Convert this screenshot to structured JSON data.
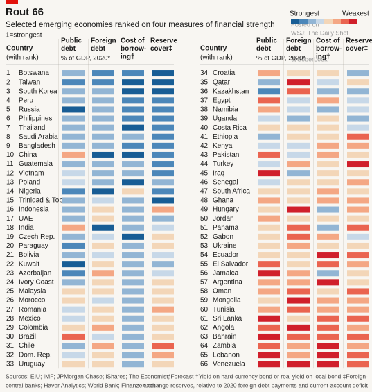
{
  "header": {
    "title": "Rout 66",
    "subtitle": "Selected emerging economies ranked on four measures of financial strength",
    "note": "1=strongest"
  },
  "legend": {
    "strong": "Strongest",
    "weak": "Weakest"
  },
  "watermark": [
    "WSJ: The Daily Shot",
    "Posted on",
    "@SoberLook"
  ],
  "scale_colors": [
    "#185d95",
    "#4c87b9",
    "#92b5d4",
    "#c7d8e8",
    "#f3d6b8",
    "#f4a784",
    "#ea6450",
    "#d01f2b"
  ],
  "columns": {
    "country": [
      "Country",
      "(with rank)"
    ],
    "public_debt": [
      "Public",
      "debt"
    ],
    "unit": "% of GDP, 2020*",
    "foreign_debt": [
      "Foreign",
      "debt"
    ],
    "cost": [
      "Cost of",
      "borrow-",
      "ing†"
    ],
    "reserve": [
      "Reserve",
      "cover‡"
    ]
  },
  "rows": [
    {
      "rank": 1,
      "country": "Botswana",
      "values": [
        3,
        2,
        2,
        1
      ]
    },
    {
      "rank": 2,
      "country": "Taiwan",
      "values": [
        2,
        2,
        1,
        1
      ]
    },
    {
      "rank": 3,
      "country": "South Korea",
      "values": [
        3,
        3,
        1,
        1
      ]
    },
    {
      "rank": 4,
      "country": "Peru",
      "values": [
        3,
        3,
        2,
        2
      ]
    },
    {
      "rank": 5,
      "country": "Russia",
      "values": [
        1,
        3,
        2,
        2
      ]
    },
    {
      "rank": 6,
      "country": "Philippines",
      "values": [
        3,
        3,
        2,
        2
      ]
    },
    {
      "rank": 7,
      "country": "Thailand",
      "values": [
        3,
        3,
        1,
        2
      ]
    },
    {
      "rank": 8,
      "country": "Saudi Arabia",
      "values": [
        3,
        3,
        3,
        2
      ]
    },
    {
      "rank": 9,
      "country": "Bangladesh",
      "values": [
        3,
        3,
        2,
        2
      ]
    },
    {
      "rank": 10,
      "country": "China",
      "values": [
        6,
        1,
        1,
        2
      ]
    },
    {
      "rank": 11,
      "country": "Guatemala",
      "values": [
        3,
        3,
        3,
        2
      ]
    },
    {
      "rank": 12,
      "country": "Vietnam",
      "values": [
        4,
        3,
        3,
        2
      ]
    },
    {
      "rank": 13,
      "country": "Poland",
      "values": [
        4,
        3,
        1,
        3
      ]
    },
    {
      "rank": 14,
      "country": "Nigeria",
      "values": [
        2,
        1,
        5,
        2
      ]
    },
    {
      "rank": 15,
      "country": "Trinidad & Tob.",
      "values": [
        3,
        4,
        3,
        1
      ]
    },
    {
      "rank": 16,
      "country": "Indonesia",
      "values": [
        3,
        5,
        3,
        6
      ]
    },
    {
      "rank": 17,
      "country": "UAE",
      "values": [
        3,
        5,
        3,
        3
      ]
    },
    {
      "rank": 18,
      "country": "India",
      "values": [
        6,
        1,
        3,
        4
      ]
    },
    {
      "rank": 19,
      "country": "Czech Rep.",
      "values": [
        3,
        4,
        1,
        5
      ]
    },
    {
      "rank": 20,
      "country": "Paraguay",
      "values": [
        2,
        5,
        3,
        5
      ]
    },
    {
      "rank": 21,
      "country": "Bolivia",
      "values": [
        3,
        4,
        3,
        4
      ]
    },
    {
      "rank": 22,
      "country": "Kuwait",
      "values": [
        1,
        5,
        3,
        3
      ]
    },
    {
      "rank": 23,
      "country": "Azerbaijan",
      "values": [
        2,
        6,
        3,
        4
      ]
    },
    {
      "rank": 24,
      "country": "Ivory Coast",
      "values": [
        3,
        5,
        3,
        5
      ]
    },
    {
      "rank": 25,
      "country": "Malaysia",
      "values": [
        5,
        5,
        3,
        5
      ]
    },
    {
      "rank": 26,
      "country": "Morocco",
      "values": [
        5,
        4,
        3,
        5
      ]
    },
    {
      "rank": 27,
      "country": "Romania",
      "values": [
        4,
        5,
        3,
        6
      ]
    },
    {
      "rank": 28,
      "country": "Mexico",
      "values": [
        4,
        5,
        3,
        5
      ]
    },
    {
      "rank": 29,
      "country": "Colombia",
      "values": [
        5,
        6,
        3,
        5
      ]
    },
    {
      "rank": 30,
      "country": "Brazil",
      "values": [
        7,
        4,
        3,
        5
      ]
    },
    {
      "rank": 31,
      "country": "Chile",
      "values": [
        3,
        6,
        3,
        7
      ]
    },
    {
      "rank": 32,
      "country": "Dom. Rep.",
      "values": [
        4,
        5,
        3,
        6
      ]
    },
    {
      "rank": 33,
      "country": "Uruguay",
      "values": [
        5,
        5,
        3,
        5
      ]
    },
    {
      "rank": 34,
      "country": "Croatia",
      "values": [
        6,
        5,
        5,
        3
      ]
    },
    {
      "rank": 35,
      "country": "Qatar",
      "values": [
        3,
        8,
        4,
        5
      ]
    },
    {
      "rank": 36,
      "country": "Kazakhstan",
      "values": [
        2,
        7,
        3,
        3
      ]
    },
    {
      "rank": 37,
      "country": "Egypt",
      "values": [
        7,
        4,
        6,
        4
      ]
    },
    {
      "rank": 38,
      "country": "Namibia",
      "values": [
        6,
        4,
        3,
        4
      ]
    },
    {
      "rank": 39,
      "country": "Uganda",
      "values": [
        4,
        3,
        5,
        3
      ]
    },
    {
      "rank": 40,
      "country": "Costa Rica",
      "values": [
        5,
        5,
        5,
        4
      ]
    },
    {
      "rank": 41,
      "country": "Ethiopia",
      "values": [
        3,
        5,
        5,
        7
      ]
    },
    {
      "rank": 42,
      "country": "Kenya",
      "values": [
        4,
        4,
        6,
        6
      ]
    },
    {
      "rank": 43,
      "country": "Pakistan",
      "values": [
        7,
        4,
        6,
        5
      ]
    },
    {
      "rank": 44,
      "country": "Turkey",
      "values": [
        4,
        6,
        5,
        8
      ]
    },
    {
      "rank": 45,
      "country": "Iraq",
      "values": [
        8,
        3,
        5,
        5
      ]
    },
    {
      "rank": 46,
      "country": "Senegal",
      "values": [
        4,
        5,
        5,
        6
      ]
    },
    {
      "rank": 47,
      "country": "South Africa",
      "values": [
        5,
        5,
        6,
        5
      ]
    },
    {
      "rank": 48,
      "country": "Ghana",
      "values": [
        6,
        5,
        6,
        6
      ]
    },
    {
      "rank": 49,
      "country": "Hungary",
      "values": [
        5,
        8,
        3,
        6
      ]
    },
    {
      "rank": 50,
      "country": "Jordan",
      "values": [
        6,
        5,
        5,
        5
      ]
    },
    {
      "rank": 51,
      "country": "Panama",
      "values": [
        5,
        7,
        3,
        7
      ]
    },
    {
      "rank": 52,
      "country": "Gabon",
      "values": [
        5,
        7,
        6,
        4
      ]
    },
    {
      "rank": 53,
      "country": "Ukraine",
      "values": [
        5,
        6,
        5,
        5
      ]
    },
    {
      "rank": 54,
      "country": "Ecuador",
      "values": [
        5,
        5,
        8,
        7
      ]
    },
    {
      "rank": 55,
      "country": "El Salvador",
      "values": [
        7,
        5,
        7,
        6
      ]
    },
    {
      "rank": 56,
      "country": "Jamaica",
      "values": [
        8,
        6,
        3,
        5
      ]
    },
    {
      "rank": 57,
      "country": "Argentina",
      "values": [
        6,
        6,
        8,
        5
      ]
    },
    {
      "rank": 58,
      "country": "Oman",
      "values": [
        6,
        7,
        5,
        7
      ]
    },
    {
      "rank": 59,
      "country": "Mongolia",
      "values": [
        5,
        8,
        6,
        6
      ]
    },
    {
      "rank": 60,
      "country": "Tunisia",
      "values": [
        6,
        7,
        6,
        6
      ]
    },
    {
      "rank": 61,
      "country": "Sri Lanka",
      "values": [
        8,
        5,
        7,
        7
      ]
    },
    {
      "rank": 62,
      "country": "Angola",
      "values": [
        7,
        8,
        7,
        6
      ]
    },
    {
      "rank": 63,
      "country": "Bahrain",
      "values": [
        8,
        7,
        7,
        7
      ]
    },
    {
      "rank": 64,
      "country": "Zambia",
      "values": [
        7,
        6,
        8,
        6
      ]
    },
    {
      "rank": 65,
      "country": "Lebanon",
      "values": [
        8,
        6,
        8,
        7
      ]
    },
    {
      "rank": 66,
      "country": "Venezuela",
      "values": [
        8,
        8,
        8,
        7
      ]
    }
  ],
  "footer": {
    "sources": [
      "Sources: EIU; IMF; JPMorgan Chase; iShares; The Economist;",
      "central banks; Haver Analytics; World Bank; Finanzen.net"
    ],
    "notes": [
      "*Forecast   †Yield on hard-currency bond or real yield on local bond   ‡Foreign-",
      "exchange reserves, relative to 2020 foreign-debt payments and current-account deficit"
    ]
  }
}
